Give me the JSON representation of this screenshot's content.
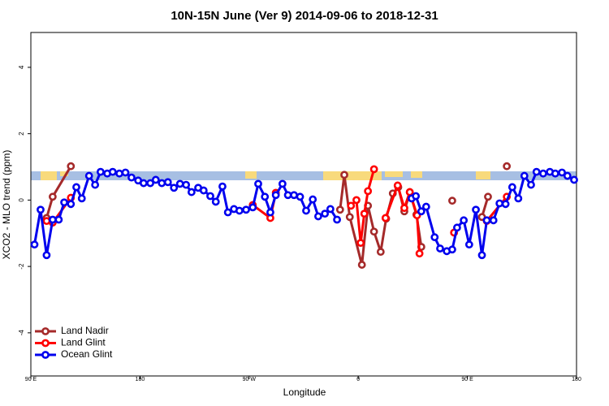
{
  "chart_data": {
    "type": "line",
    "title": "10N-15N June (Ver 9)   2014-09-06 to 2018-12-31",
    "xlabel": "Longitude",
    "ylabel": "XCO2 - MLO trend (ppm)",
    "xlim": [
      90,
      540
    ],
    "ylim": [
      -5.3,
      5.05
    ],
    "xticks": [
      {
        "value": 90,
        "label": "90 E"
      },
      180,
      {
        "value": 270,
        "label": "90 W"
      },
      {
        "value": 360,
        "label": "0"
      },
      {
        "value": 450,
        "label": "90 E"
      },
      {
        "value": 540,
        "label": "180"
      }
    ],
    "yticks": [
      -4,
      -2,
      0,
      2,
      4
    ],
    "legend": "lower left",
    "series": [
      {
        "name": "Land Nadir",
        "color": "#a52a2a",
        "x": [
          103,
          108,
          123,
          null,
          345,
          348.5,
          353,
          363,
          368,
          373,
          378.5,
          383,
          388.5,
          393,
          398,
          402.5,
          408,
          412,
          null,
          437.5,
          null,
          462,
          467,
          null,
          482.5
        ],
        "values": [
          -0.54,
          0.1,
          1.02,
          null,
          -0.29,
          0.76,
          -0.51,
          -1.95,
          -0.17,
          -0.95,
          -1.56,
          -0.56,
          0.2,
          0.39,
          -0.34,
          0.24,
          -0.44,
          -1.41,
          null,
          -0.02,
          null,
          -0.51,
          0.1,
          null,
          1.02
        ]
      },
      {
        "name": "Land Glint",
        "color": "#ff0000",
        "x": [
          103,
          108,
          123,
          null,
          273,
          287.5,
          292,
          null,
          354,
          358.5,
          362,
          365,
          368,
          373,
          null,
          382.5,
          392.5,
          398,
          402.5,
          408.5,
          410.5,
          null,
          439,
          null,
          466,
          482.5
        ],
        "values": [
          -0.63,
          -0.68,
          0.07,
          null,
          -0.15,
          -0.54,
          0.22,
          null,
          -0.17,
          0,
          -1.29,
          -0.41,
          0.27,
          0.93,
          null,
          -0.54,
          0.44,
          -0.24,
          0.24,
          -0.46,
          -1.61,
          null,
          -0.98,
          null,
          -0.63,
          0.1
        ]
      },
      {
        "name": "Ocean Glint",
        "color": "#0000ee",
        "x": [
          93,
          98,
          103,
          108,
          113,
          117.5,
          123,
          127.5,
          132,
          138,
          143,
          147.5,
          153,
          157.5,
          163,
          168,
          173,
          178.5,
          183,
          188.5,
          193,
          198,
          203,
          208,
          213,
          218,
          222.5,
          228,
          232.5,
          238,
          242.5,
          248,
          252.5,
          257.5,
          262,
          267.5,
          273,
          277.5,
          283,
          287.5,
          292,
          297.5,
          302,
          307,
          312,
          317,
          322.5,
          327,
          332.5,
          337,
          342.5,
          null,
          404,
          407.5,
          412,
          416,
          423,
          427.5,
          433,
          437.5,
          441.5,
          447,
          451.5,
          457,
          462,
          466,
          471.5,
          476.5,
          481.5,
          487,
          492,
          497,
          502.5,
          507,
          512.5,
          518,
          522.5,
          528,
          532.5,
          538
        ],
        "values": [
          -1.34,
          -0.29,
          -1.66,
          -0.59,
          -0.59,
          -0.07,
          -0.12,
          0.39,
          0.05,
          0.73,
          0.46,
          0.85,
          0.8,
          0.85,
          0.8,
          0.83,
          0.68,
          0.59,
          0.51,
          0.51,
          0.61,
          0.51,
          0.54,
          0.37,
          0.49,
          0.46,
          0.24,
          0.37,
          0.29,
          0.12,
          -0.05,
          0.41,
          -0.37,
          -0.27,
          -0.32,
          -0.29,
          -0.22,
          0.49,
          0.1,
          -0.37,
          0.15,
          0.49,
          0.15,
          0.15,
          0.1,
          -0.32,
          0.02,
          -0.49,
          -0.41,
          -0.27,
          -0.59,
          null,
          0.05,
          0.12,
          -0.34,
          -0.2,
          -1.12,
          -1.46,
          -1.54,
          -1.49,
          -0.83,
          -0.61,
          -1.34,
          -0.29,
          -1.66,
          -0.61,
          -0.61,
          -0.1,
          -0.12,
          0.39,
          0.05,
          0.73,
          0.46,
          0.85,
          0.8,
          0.85,
          0.8,
          0.83,
          0.73,
          0.61
        ]
      }
    ]
  }
}
